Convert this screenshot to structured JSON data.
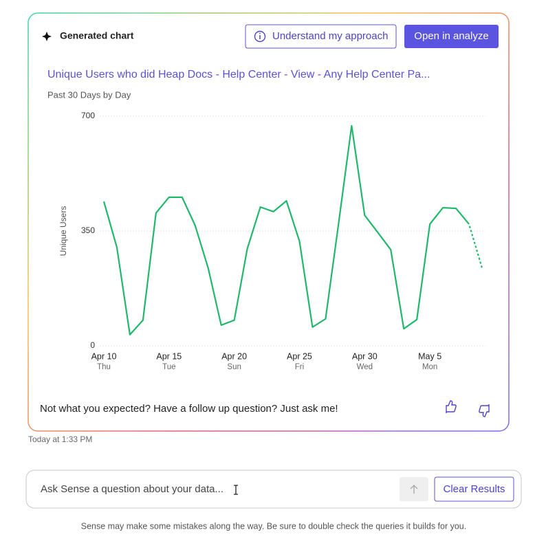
{
  "card": {
    "label": "Generated chart",
    "buttons": [
      "Understand my approach",
      "Open in analyze"
    ],
    "feedback_prompt": "Not what you expected? Have a follow up question? Just ask me!"
  },
  "chart_data": {
    "type": "line",
    "title": "Unique Users who did Heap Docs - Help Center - View - Any Help Center Pa...",
    "subtitle": "Past 30 Days by Day",
    "y_label": "Unique Users",
    "categories": [
      "Apr 10",
      null,
      null,
      null,
      null,
      "Apr 15",
      null,
      null,
      null,
      null,
      "Apr 20",
      null,
      null,
      null,
      null,
      "Apr 25",
      null,
      null,
      null,
      null,
      "Apr 30",
      null,
      null,
      null,
      null,
      "May 5",
      null,
      null,
      null,
      null
    ],
    "weekday_labels": [
      "Thu",
      null,
      null,
      null,
      null,
      "Tue",
      null,
      null,
      null,
      null,
      "Sun",
      null,
      null,
      null,
      null,
      "Fri",
      null,
      null,
      null,
      null,
      "Wed",
      null,
      null,
      null,
      null,
      "Mon",
      null,
      null,
      null,
      null
    ],
    "series": [
      {
        "name": "Unique Users",
        "color": "#1fb86b",
        "values": [
          440,
          300,
          34,
          78,
          405,
          453,
          453,
          367,
          237,
          63,
          78,
          296,
          423,
          409,
          442,
          319,
          57,
          82,
          373,
          671,
          398,
          346,
          293,
          52,
          80,
          371,
          421,
          419,
          371,
          237
        ]
      }
    ],
    "ylim": [
      0,
      700
    ],
    "yticks": [
      0,
      350,
      700
    ],
    "grid": true,
    "dashed_last": true
  },
  "timestamp": "Today at 1:33 PM",
  "input": {
    "placeholder": "Ask Sense a question about your data...",
    "button": "Clear Results"
  },
  "disclaimer": "Sense may make some mistakes along the way. Be sure to double check the queries it builds for you."
}
